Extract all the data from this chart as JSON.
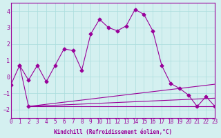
{
  "xlabel": "Windchill (Refroidissement éolien,°C)",
  "bg_color": "#d4f0f0",
  "line_color": "#990099",
  "grid_color": "#aadddd",
  "xlim": [
    0,
    23
  ],
  "ylim": [
    -2.5,
    4.5
  ],
  "xticks": [
    0,
    1,
    2,
    3,
    4,
    5,
    6,
    7,
    8,
    9,
    10,
    11,
    12,
    13,
    14,
    15,
    16,
    17,
    18,
    19,
    20,
    21,
    22,
    23
  ],
  "yticks": [
    -2,
    -1,
    0,
    1,
    2,
    3,
    4
  ],
  "line1_x": [
    1,
    2,
    3,
    4,
    5,
    6,
    7,
    8,
    9,
    10,
    11,
    12,
    13,
    14,
    15,
    16,
    17,
    18,
    19,
    20,
    21,
    22,
    23
  ],
  "line1_y": [
    0.7,
    -0.2,
    0.7,
    -0.3,
    0.7,
    1.7,
    1.6,
    0.4,
    2.6,
    3.5,
    3.0,
    2.8,
    3.1,
    4.1,
    3.8,
    2.8,
    0.7,
    -0.4,
    -0.7,
    -1.1,
    -1.8,
    -1.2,
    -1.8
  ],
  "line2_x": [
    2,
    23
  ],
  "line2_y": [
    -1.8,
    -1.8
  ],
  "line3_x": [
    2,
    23
  ],
  "line3_y": [
    -1.8,
    -0.45
  ],
  "line4_x": [
    2,
    23
  ],
  "line4_y": [
    -1.8,
    -1.3
  ],
  "line5_x": [
    0,
    1,
    2
  ],
  "line5_y": [
    -0.5,
    0.7,
    -1.8
  ]
}
